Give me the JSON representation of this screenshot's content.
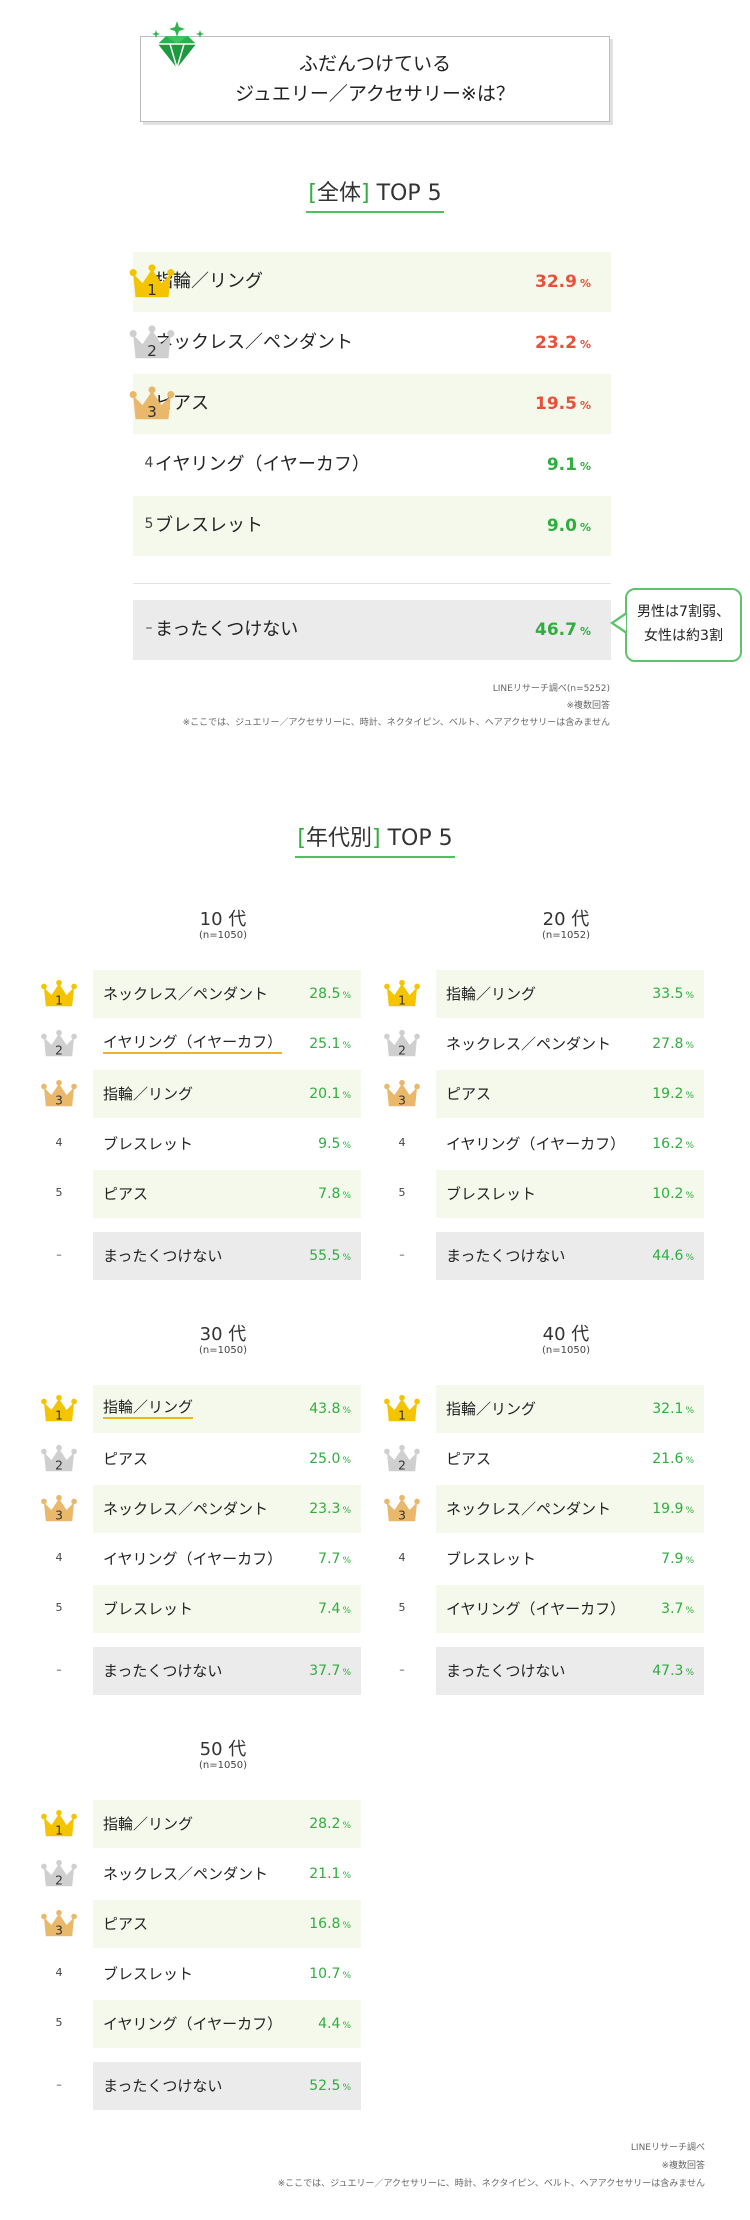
{
  "title": {
    "line1": "ふだんつけている",
    "line2": "ジュエリー／アクセサリー※は？"
  },
  "overall": {
    "title_bracket_open": "[",
    "title_word": "全体",
    "title_bracket_close": "]",
    "title_rest": " TOP 5",
    "rows": [
      {
        "rank": "1",
        "label": "指輪／リング",
        "value": "32.9"
      },
      {
        "rank": "2",
        "label": "ネックレス／ペンダント",
        "value": "23.2"
      },
      {
        "rank": "3",
        "label": "ピアス",
        "value": "19.5"
      },
      {
        "rank": "4",
        "label": "イヤリング（イヤーカフ）",
        "value": "9.1"
      },
      {
        "rank": "5",
        "label": "ブレスレット",
        "value": "9.0"
      }
    ],
    "none_row": {
      "rank": "–",
      "label": "まったくつけない",
      "value": "46.7"
    },
    "pct_unit": "%",
    "callout": {
      "line1": "男性は7割弱、",
      "line2": "女性は約3割"
    },
    "source": "LINEリサーチ調べ(n=5252)",
    "multi": "※複数回答",
    "footnote": "※ここでは、ジュエリー／アクセサリーに、時計、ネクタイピン、ベルト、ヘアアクセサリーは含みません"
  },
  "by_age": {
    "title_bracket_open": "[",
    "title_word": "年代別",
    "title_bracket_close": "]",
    "title_rest": " TOP 5",
    "groups": [
      {
        "name": "10 代",
        "n": "(n=1050)",
        "rows": [
          {
            "rank": "1",
            "label": "ネックレス／ペンダント",
            "value": "28.5"
          },
          {
            "rank": "2",
            "label": "イヤリング（イヤーカフ）",
            "value": "25.1"
          },
          {
            "rank": "3",
            "label": "指輪／リング",
            "value": "20.1"
          },
          {
            "rank": "4",
            "label": "ブレスレット",
            "value": "9.5"
          },
          {
            "rank": "5",
            "label": "ピアス",
            "value": "7.8"
          }
        ],
        "none": {
          "rank": "–",
          "label": "まったくつけない",
          "value": "55.5"
        }
      },
      {
        "name": "20 代",
        "n": "(n=1052)",
        "rows": [
          {
            "rank": "1",
            "label": "指輪／リング",
            "value": "33.5"
          },
          {
            "rank": "2",
            "label": "ネックレス／ペンダント",
            "value": "27.8"
          },
          {
            "rank": "3",
            "label": "ピアス",
            "value": "19.2"
          },
          {
            "rank": "4",
            "label": "イヤリング（イヤーカフ）",
            "value": "16.2"
          },
          {
            "rank": "5",
            "label": "ブレスレット",
            "value": "10.2"
          }
        ],
        "none": {
          "rank": "–",
          "label": "まったくつけない",
          "value": "44.6"
        }
      },
      {
        "name": "30 代",
        "n": "(n=1050)",
        "rows": [
          {
            "rank": "1",
            "label": "指輪／リング",
            "value": "43.8"
          },
          {
            "rank": "2",
            "label": "ピアス",
            "value": "25.0"
          },
          {
            "rank": "3",
            "label": "ネックレス／ペンダント",
            "value": "23.3"
          },
          {
            "rank": "4",
            "label": "イヤリング（イヤーカフ）",
            "value": "7.7"
          },
          {
            "rank": "5",
            "label": "ブレスレット",
            "value": "7.4"
          }
        ],
        "none": {
          "rank": "–",
          "label": "まったくつけない",
          "value": "37.7"
        }
      },
      {
        "name": "40 代",
        "n": "(n=1050)",
        "rows": [
          {
            "rank": "1",
            "label": "指輪／リング",
            "value": "32.1"
          },
          {
            "rank": "2",
            "label": "ピアス",
            "value": "21.6"
          },
          {
            "rank": "3",
            "label": "ネックレス／ペンダント",
            "value": "19.9"
          },
          {
            "rank": "4",
            "label": "ブレスレット",
            "value": "7.9"
          },
          {
            "rank": "5",
            "label": "イヤリング（イヤーカフ）",
            "value": "3.7"
          }
        ],
        "none": {
          "rank": "–",
          "label": "まったくつけない",
          "value": "47.3"
        }
      },
      {
        "name": "50 代",
        "n": "(n=1050)",
        "rows": [
          {
            "rank": "1",
            "label": "指輪／リング",
            "value": "28.2"
          },
          {
            "rank": "2",
            "label": "ネックレス／ペンダント",
            "value": "21.1"
          },
          {
            "rank": "3",
            "label": "ピアス",
            "value": "16.8"
          },
          {
            "rank": "4",
            "label": "ブレスレット",
            "value": "10.7"
          },
          {
            "rank": "5",
            "label": "イヤリング（イヤーカフ）",
            "value": "4.4"
          }
        ],
        "none": {
          "rank": "–",
          "label": "まったくつけない",
          "value": "52.5"
        }
      }
    ],
    "source": "LINEリサーチ調べ",
    "multi": "※複数回答",
    "footnote": "※ここでは、ジュエリー／アクセサリーに、時計、ネクタイピン、ベルト、ヘアアクセサリーは含みません"
  },
  "colors": {
    "gold": "#f5c400",
    "silver": "#cfcfcf",
    "bronze": "#e9b86a",
    "green": "#2fae3f",
    "red": "#e8503a",
    "shade": "#f5f9ec",
    "none_bg": "#ebebeb"
  },
  "chart_data": [
    {
      "type": "table",
      "title": "[全体] TOP 5",
      "categories": [
        "指輪／リング",
        "ネックレス／ペンダント",
        "ピアス",
        "イヤリング（イヤーカフ）",
        "ブレスレット",
        "まったくつけない"
      ],
      "values": [
        32.9,
        23.2,
        19.5,
        9.1,
        9.0,
        46.7
      ],
      "unit": "%"
    },
    {
      "type": "table",
      "title": "10 代",
      "categories": [
        "ネックレス／ペンダント",
        "イヤリング（イヤーカフ）",
        "指輪／リング",
        "ブレスレット",
        "ピアス",
        "まったくつけない"
      ],
      "values": [
        28.5,
        25.1,
        20.1,
        9.5,
        7.8,
        55.5
      ],
      "unit": "%"
    },
    {
      "type": "table",
      "title": "20 代",
      "categories": [
        "指輪／リング",
        "ネックレス／ペンダント",
        "ピアス",
        "イヤリング（イヤーカフ）",
        "ブレスレット",
        "まったくつけない"
      ],
      "values": [
        33.5,
        27.8,
        19.2,
        16.2,
        10.2,
        44.6
      ],
      "unit": "%"
    },
    {
      "type": "table",
      "title": "30 代",
      "categories": [
        "指輪／リング",
        "ピアス",
        "ネックレス／ペンダント",
        "イヤリング（イヤーカフ）",
        "ブレスレット",
        "まったくつけない"
      ],
      "values": [
        43.8,
        25.0,
        23.3,
        7.7,
        7.4,
        37.7
      ],
      "unit": "%"
    },
    {
      "type": "table",
      "title": "40 代",
      "categories": [
        "指輪／リング",
        "ピアス",
        "ネックレス／ペンダント",
        "ブレスレット",
        "イヤリング（イヤーカフ）",
        "まったくつけない"
      ],
      "values": [
        32.1,
        21.6,
        19.9,
        7.9,
        3.7,
        47.3
      ],
      "unit": "%"
    },
    {
      "type": "table",
      "title": "50 代",
      "categories": [
        "指輪／リング",
        "ネックレス／ペンダント",
        "ピアス",
        "ブレスレット",
        "イヤリング（イヤーカフ）",
        "まったくつけない"
      ],
      "values": [
        28.2,
        21.1,
        16.8,
        10.7,
        4.4,
        52.5
      ],
      "unit": "%"
    }
  ]
}
